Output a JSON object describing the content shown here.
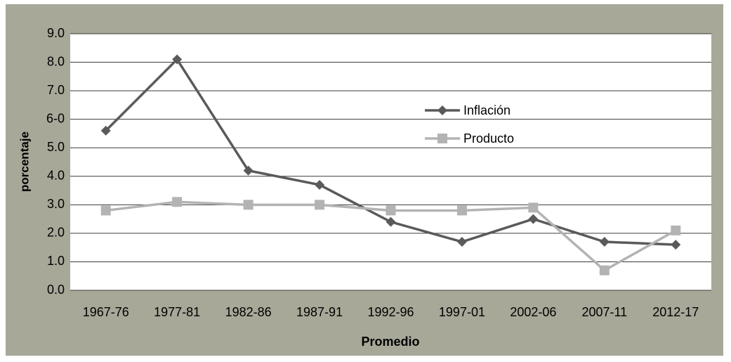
{
  "chart_data": {
    "type": "line",
    "categories": [
      "1967-76",
      "1977-81",
      "1982-86",
      "1987-91",
      "1992-96",
      "1997-01",
      "2002-06",
      "2007-11",
      "2012-17"
    ],
    "series": [
      {
        "name": "Inflación",
        "color": "#5a5a5a",
        "marker": "diamond",
        "values": [
          5.6,
          8.1,
          4.2,
          3.7,
          2.4,
          1.7,
          2.5,
          1.7,
          1.6
        ]
      },
      {
        "name": "Producto",
        "color": "#b3b3b3",
        "marker": "square",
        "values": [
          2.8,
          3.1,
          3.0,
          3.0,
          2.8,
          2.8,
          2.9,
          0.7,
          2.1
        ]
      }
    ],
    "ylim": [
      0,
      9
    ],
    "yticks": [
      {
        "value": 0,
        "label": "0.0"
      },
      {
        "value": 1,
        "label": "1.0"
      },
      {
        "value": 2,
        "label": "2.0"
      },
      {
        "value": 3,
        "label": "3.0"
      },
      {
        "value": 4,
        "label": "4.0"
      },
      {
        "value": 5,
        "label": "5.0"
      },
      {
        "value": 6,
        "label": "6-0"
      },
      {
        "value": 7,
        "label": "7.0"
      },
      {
        "value": 8,
        "label": "8.0"
      },
      {
        "value": 9,
        "label": "9.0"
      }
    ],
    "ylabel": "porcentaje",
    "xlabel": "Promedio",
    "grid": true,
    "legend": "center"
  }
}
